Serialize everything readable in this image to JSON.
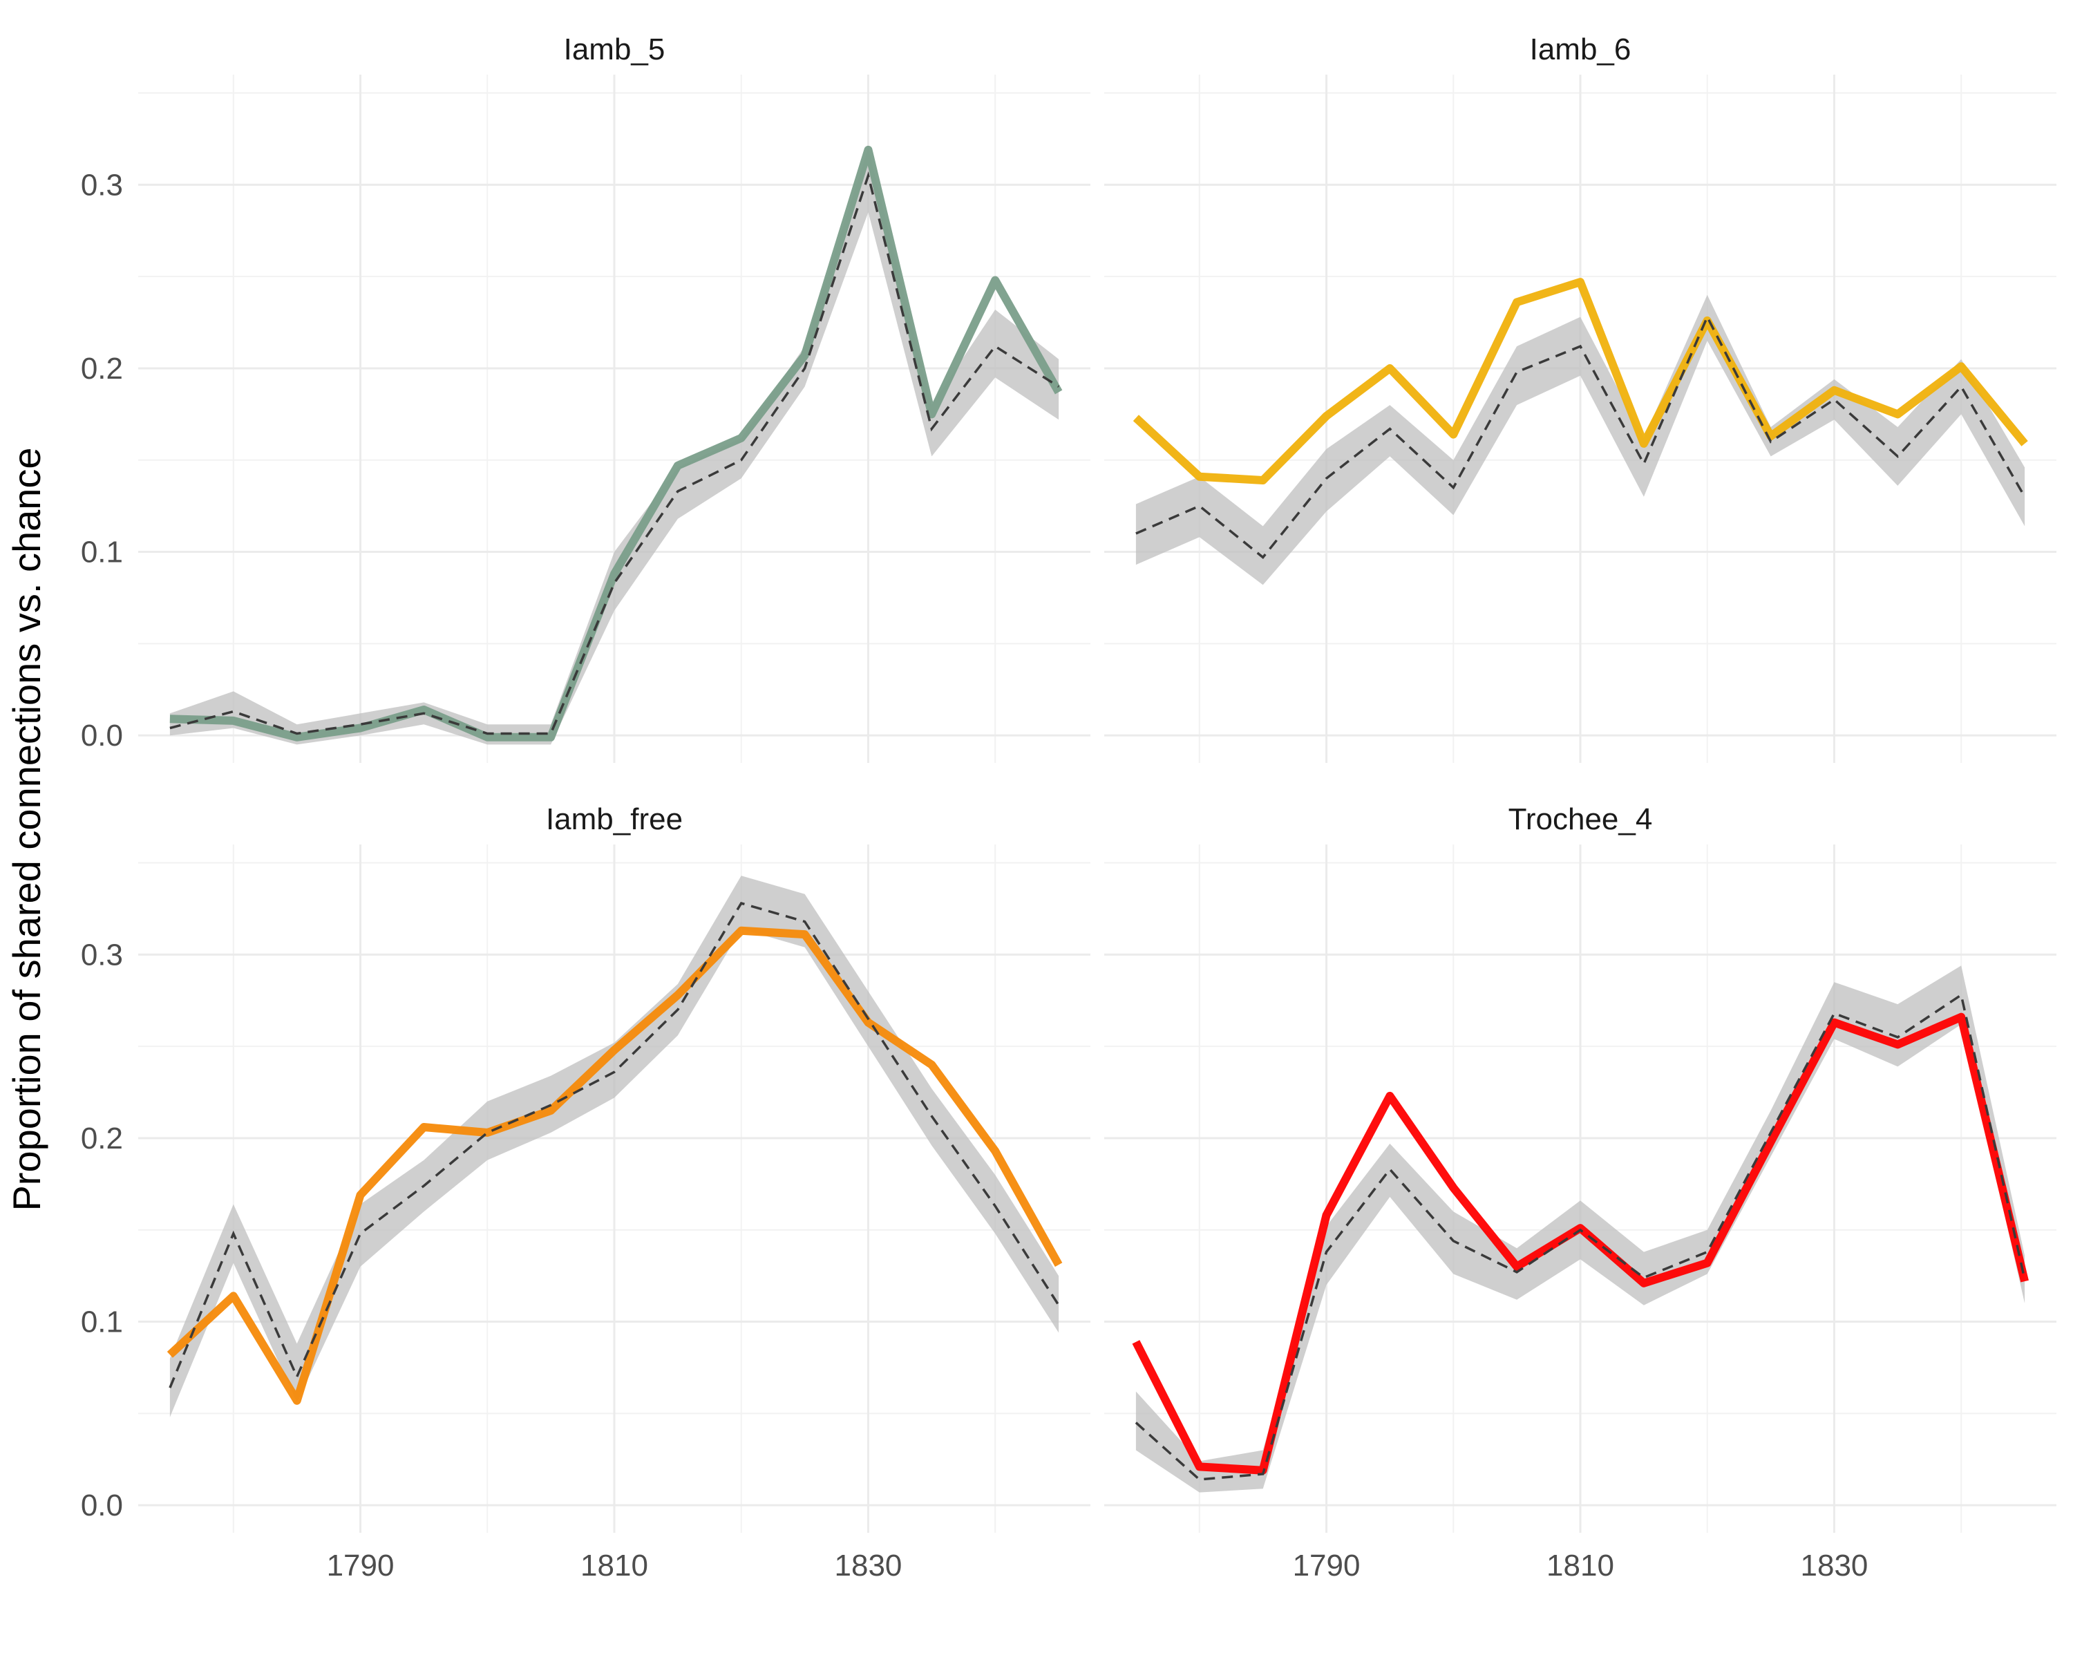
{
  "chart_data": {
    "type": "line",
    "ylabel": "Proportion of shared connections vs. chance",
    "xlabel": "",
    "grid": true,
    "legend": "none",
    "xlim": [
      1772.5,
      1847.5
    ],
    "ylim": [
      -0.015,
      0.36
    ],
    "x_ticks": [
      1790,
      1810,
      1830
    ],
    "x_tick_labels": [
      "1790",
      "1810",
      "1830"
    ],
    "y_ticks": [
      0.0,
      0.1,
      0.2,
      0.3
    ],
    "y_tick_labels": [
      "0.0",
      "0.1",
      "0.2",
      "0.3"
    ],
    "x": [
      1775,
      1780,
      1785,
      1790,
      1795,
      1800,
      1805,
      1810,
      1815,
      1820,
      1825,
      1830,
      1835,
      1840,
      1845
    ],
    "panels": [
      {
        "title": "Iamb_5",
        "color": "#7a9e8a",
        "values": [
          0.009,
          0.008,
          -0.001,
          0.004,
          0.014,
          -0.001,
          -0.001,
          0.088,
          0.147,
          0.162,
          0.207,
          0.319,
          0.175,
          0.248,
          0.187
        ],
        "expected": [
          0.004,
          0.013,
          0.001,
          0.006,
          0.012,
          0.001,
          0.001,
          0.083,
          0.133,
          0.15,
          0.2,
          0.305,
          0.167,
          0.212,
          0.19
        ],
        "band_low": [
          0.0,
          0.004,
          -0.005,
          0.0,
          0.006,
          -0.005,
          -0.005,
          0.068,
          0.118,
          0.14,
          0.19,
          0.285,
          0.152,
          0.195,
          0.172
        ],
        "band_high": [
          0.012,
          0.024,
          0.006,
          0.012,
          0.018,
          0.006,
          0.006,
          0.1,
          0.146,
          0.162,
          0.212,
          0.32,
          0.18,
          0.232,
          0.205
        ]
      },
      {
        "title": "Iamb_6",
        "color": "#f0b10c",
        "values": [
          0.173,
          0.141,
          0.139,
          0.174,
          0.2,
          0.164,
          0.236,
          0.247,
          0.159,
          0.226,
          0.163,
          0.188,
          0.175,
          0.201,
          0.159
        ],
        "expected": [
          0.11,
          0.125,
          0.097,
          0.14,
          0.167,
          0.135,
          0.198,
          0.212,
          0.148,
          0.228,
          0.16,
          0.183,
          0.152,
          0.19,
          0.13
        ],
        "band_low": [
          0.093,
          0.108,
          0.082,
          0.122,
          0.152,
          0.12,
          0.18,
          0.196,
          0.13,
          0.215,
          0.152,
          0.172,
          0.136,
          0.175,
          0.114
        ],
        "band_high": [
          0.126,
          0.141,
          0.114,
          0.156,
          0.18,
          0.15,
          0.212,
          0.228,
          0.162,
          0.24,
          0.168,
          0.194,
          0.168,
          0.205,
          0.146
        ]
      },
      {
        "title": "Iamb_free",
        "color": "#f68a0a",
        "values": [
          0.082,
          0.114,
          0.057,
          0.169,
          0.206,
          0.203,
          0.215,
          0.248,
          0.278,
          0.313,
          0.311,
          0.263,
          0.24,
          0.193,
          0.131
        ],
        "expected": [
          0.064,
          0.148,
          0.07,
          0.148,
          0.174,
          0.203,
          0.218,
          0.236,
          0.27,
          0.328,
          0.318,
          0.265,
          0.212,
          0.163,
          0.109
        ],
        "band_low": [
          0.048,
          0.132,
          0.056,
          0.13,
          0.16,
          0.188,
          0.203,
          0.222,
          0.256,
          0.314,
          0.304,
          0.25,
          0.196,
          0.148,
          0.094
        ],
        "band_high": [
          0.08,
          0.164,
          0.088,
          0.164,
          0.188,
          0.22,
          0.234,
          0.252,
          0.284,
          0.343,
          0.333,
          0.28,
          0.227,
          0.18,
          0.125
        ]
      },
      {
        "title": "Trochee_4",
        "color": "#ff0000",
        "values": [
          0.089,
          0.021,
          0.019,
          0.158,
          0.223,
          0.173,
          0.13,
          0.151,
          0.121,
          0.132,
          0.198,
          0.263,
          0.251,
          0.266,
          0.122
        ],
        "expected": [
          0.045,
          0.014,
          0.017,
          0.138,
          0.183,
          0.144,
          0.127,
          0.15,
          0.124,
          0.138,
          0.203,
          0.268,
          0.255,
          0.278,
          0.123
        ],
        "band_low": [
          0.03,
          0.007,
          0.009,
          0.12,
          0.168,
          0.126,
          0.112,
          0.134,
          0.109,
          0.126,
          0.19,
          0.254,
          0.239,
          0.262,
          0.11
        ],
        "band_high": [
          0.062,
          0.024,
          0.03,
          0.152,
          0.197,
          0.16,
          0.14,
          0.166,
          0.138,
          0.15,
          0.215,
          0.285,
          0.273,
          0.294,
          0.136
        ]
      }
    ]
  }
}
